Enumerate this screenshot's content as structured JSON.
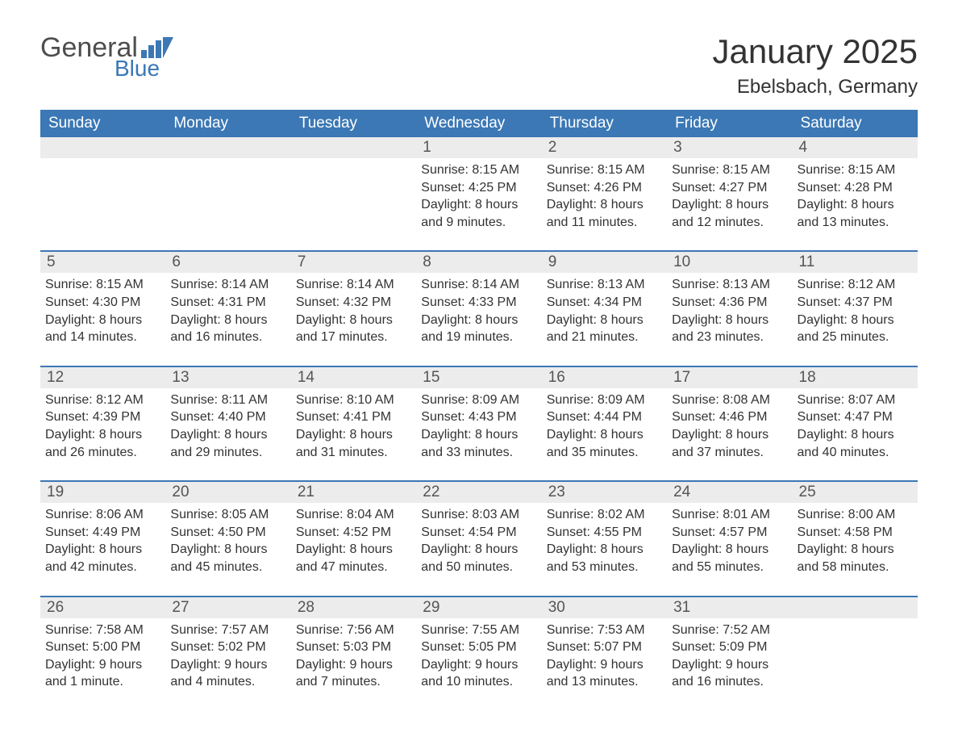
{
  "logo": {
    "text1": "General",
    "text2": "Blue"
  },
  "title": "January 2025",
  "location": "Ebelsbach, Germany",
  "colors": {
    "accent": "#3b78b5",
    "header_bg": "#3b78b5",
    "header_text": "#ffffff",
    "daynum_bg": "#ececec",
    "body_text": "#333333",
    "logo_gray": "#4d4d4d"
  },
  "daysOfWeek": [
    "Sunday",
    "Monday",
    "Tuesday",
    "Wednesday",
    "Thursday",
    "Friday",
    "Saturday"
  ],
  "weeks": [
    [
      null,
      null,
      null,
      {
        "n": "1",
        "sunrise": "Sunrise: 8:15 AM",
        "sunset": "Sunset: 4:25 PM",
        "day1": "Daylight: 8 hours",
        "day2": "and 9 minutes."
      },
      {
        "n": "2",
        "sunrise": "Sunrise: 8:15 AM",
        "sunset": "Sunset: 4:26 PM",
        "day1": "Daylight: 8 hours",
        "day2": "and 11 minutes."
      },
      {
        "n": "3",
        "sunrise": "Sunrise: 8:15 AM",
        "sunset": "Sunset: 4:27 PM",
        "day1": "Daylight: 8 hours",
        "day2": "and 12 minutes."
      },
      {
        "n": "4",
        "sunrise": "Sunrise: 8:15 AM",
        "sunset": "Sunset: 4:28 PM",
        "day1": "Daylight: 8 hours",
        "day2": "and 13 minutes."
      }
    ],
    [
      {
        "n": "5",
        "sunrise": "Sunrise: 8:15 AM",
        "sunset": "Sunset: 4:30 PM",
        "day1": "Daylight: 8 hours",
        "day2": "and 14 minutes."
      },
      {
        "n": "6",
        "sunrise": "Sunrise: 8:14 AM",
        "sunset": "Sunset: 4:31 PM",
        "day1": "Daylight: 8 hours",
        "day2": "and 16 minutes."
      },
      {
        "n": "7",
        "sunrise": "Sunrise: 8:14 AM",
        "sunset": "Sunset: 4:32 PM",
        "day1": "Daylight: 8 hours",
        "day2": "and 17 minutes."
      },
      {
        "n": "8",
        "sunrise": "Sunrise: 8:14 AM",
        "sunset": "Sunset: 4:33 PM",
        "day1": "Daylight: 8 hours",
        "day2": "and 19 minutes."
      },
      {
        "n": "9",
        "sunrise": "Sunrise: 8:13 AM",
        "sunset": "Sunset: 4:34 PM",
        "day1": "Daylight: 8 hours",
        "day2": "and 21 minutes."
      },
      {
        "n": "10",
        "sunrise": "Sunrise: 8:13 AM",
        "sunset": "Sunset: 4:36 PM",
        "day1": "Daylight: 8 hours",
        "day2": "and 23 minutes."
      },
      {
        "n": "11",
        "sunrise": "Sunrise: 8:12 AM",
        "sunset": "Sunset: 4:37 PM",
        "day1": "Daylight: 8 hours",
        "day2": "and 25 minutes."
      }
    ],
    [
      {
        "n": "12",
        "sunrise": "Sunrise: 8:12 AM",
        "sunset": "Sunset: 4:39 PM",
        "day1": "Daylight: 8 hours",
        "day2": "and 26 minutes."
      },
      {
        "n": "13",
        "sunrise": "Sunrise: 8:11 AM",
        "sunset": "Sunset: 4:40 PM",
        "day1": "Daylight: 8 hours",
        "day2": "and 29 minutes."
      },
      {
        "n": "14",
        "sunrise": "Sunrise: 8:10 AM",
        "sunset": "Sunset: 4:41 PM",
        "day1": "Daylight: 8 hours",
        "day2": "and 31 minutes."
      },
      {
        "n": "15",
        "sunrise": "Sunrise: 8:09 AM",
        "sunset": "Sunset: 4:43 PM",
        "day1": "Daylight: 8 hours",
        "day2": "and 33 minutes."
      },
      {
        "n": "16",
        "sunrise": "Sunrise: 8:09 AM",
        "sunset": "Sunset: 4:44 PM",
        "day1": "Daylight: 8 hours",
        "day2": "and 35 minutes."
      },
      {
        "n": "17",
        "sunrise": "Sunrise: 8:08 AM",
        "sunset": "Sunset: 4:46 PM",
        "day1": "Daylight: 8 hours",
        "day2": "and 37 minutes."
      },
      {
        "n": "18",
        "sunrise": "Sunrise: 8:07 AM",
        "sunset": "Sunset: 4:47 PM",
        "day1": "Daylight: 8 hours",
        "day2": "and 40 minutes."
      }
    ],
    [
      {
        "n": "19",
        "sunrise": "Sunrise: 8:06 AM",
        "sunset": "Sunset: 4:49 PM",
        "day1": "Daylight: 8 hours",
        "day2": "and 42 minutes."
      },
      {
        "n": "20",
        "sunrise": "Sunrise: 8:05 AM",
        "sunset": "Sunset: 4:50 PM",
        "day1": "Daylight: 8 hours",
        "day2": "and 45 minutes."
      },
      {
        "n": "21",
        "sunrise": "Sunrise: 8:04 AM",
        "sunset": "Sunset: 4:52 PM",
        "day1": "Daylight: 8 hours",
        "day2": "and 47 minutes."
      },
      {
        "n": "22",
        "sunrise": "Sunrise: 8:03 AM",
        "sunset": "Sunset: 4:54 PM",
        "day1": "Daylight: 8 hours",
        "day2": "and 50 minutes."
      },
      {
        "n": "23",
        "sunrise": "Sunrise: 8:02 AM",
        "sunset": "Sunset: 4:55 PM",
        "day1": "Daylight: 8 hours",
        "day2": "and 53 minutes."
      },
      {
        "n": "24",
        "sunrise": "Sunrise: 8:01 AM",
        "sunset": "Sunset: 4:57 PM",
        "day1": "Daylight: 8 hours",
        "day2": "and 55 minutes."
      },
      {
        "n": "25",
        "sunrise": "Sunrise: 8:00 AM",
        "sunset": "Sunset: 4:58 PM",
        "day1": "Daylight: 8 hours",
        "day2": "and 58 minutes."
      }
    ],
    [
      {
        "n": "26",
        "sunrise": "Sunrise: 7:58 AM",
        "sunset": "Sunset: 5:00 PM",
        "day1": "Daylight: 9 hours",
        "day2": "and 1 minute."
      },
      {
        "n": "27",
        "sunrise": "Sunrise: 7:57 AM",
        "sunset": "Sunset: 5:02 PM",
        "day1": "Daylight: 9 hours",
        "day2": "and 4 minutes."
      },
      {
        "n": "28",
        "sunrise": "Sunrise: 7:56 AM",
        "sunset": "Sunset: 5:03 PM",
        "day1": "Daylight: 9 hours",
        "day2": "and 7 minutes."
      },
      {
        "n": "29",
        "sunrise": "Sunrise: 7:55 AM",
        "sunset": "Sunset: 5:05 PM",
        "day1": "Daylight: 9 hours",
        "day2": "and 10 minutes."
      },
      {
        "n": "30",
        "sunrise": "Sunrise: 7:53 AM",
        "sunset": "Sunset: 5:07 PM",
        "day1": "Daylight: 9 hours",
        "day2": "and 13 minutes."
      },
      {
        "n": "31",
        "sunrise": "Sunrise: 7:52 AM",
        "sunset": "Sunset: 5:09 PM",
        "day1": "Daylight: 9 hours",
        "day2": "and 16 minutes."
      },
      null
    ]
  ]
}
